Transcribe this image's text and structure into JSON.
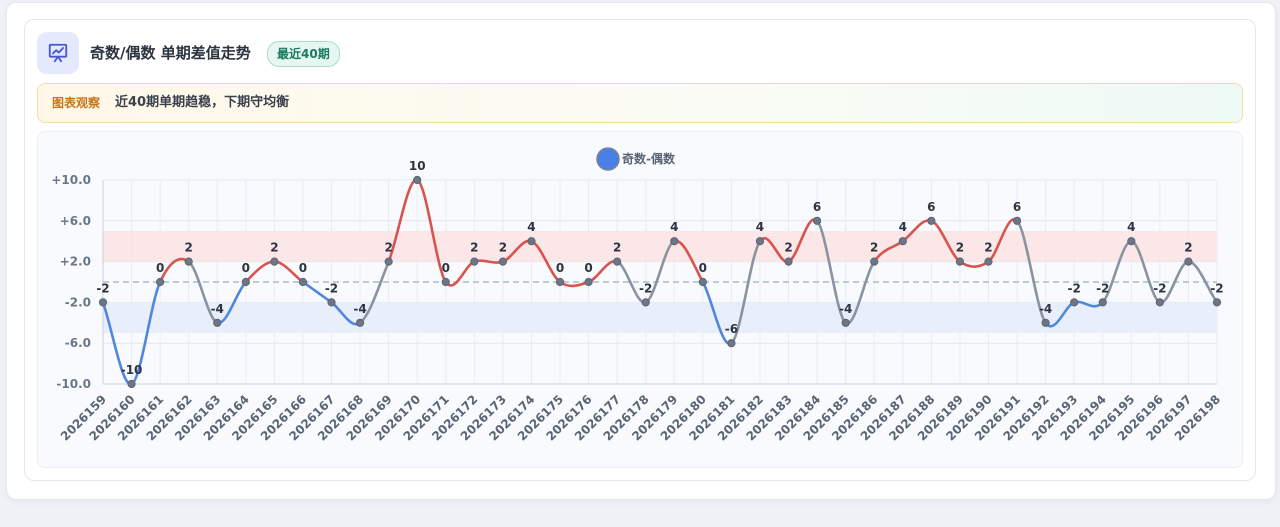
{
  "header": {
    "title": "奇数/偶数 单期差值走势",
    "badge": "最近40期"
  },
  "observation": {
    "label": "图表观察",
    "text": "近40期单期趋稳，下期守均衡"
  },
  "colors": {
    "positive": "#d9534f",
    "negative": "#4f86e0",
    "neutral": "#8a93a1",
    "legend_dot": "#4a7fe8",
    "band_positive": "#fbe3e6",
    "band_negative": "#e6edfb"
  },
  "chart_data": {
    "type": "line",
    "title": "",
    "xlabel": "",
    "ylabel": "",
    "legend": [
      "奇数-偶数"
    ],
    "legend_position": "top-center",
    "grid": true,
    "ylim": [
      -10,
      10
    ],
    "y_ticks": [
      "+10.0",
      "+6.0",
      "+2.0",
      "-2.0",
      "-6.0",
      "-10.0"
    ],
    "y_tick_values": [
      10,
      6,
      2,
      -2,
      -6,
      -10
    ],
    "reference_line": 0,
    "bands": [
      {
        "from": 2,
        "to": 5,
        "kind": "positive"
      },
      {
        "from": -2,
        "to": -5,
        "kind": "negative"
      }
    ],
    "categories": [
      "2026159",
      "2026160",
      "2026161",
      "2026162",
      "2026163",
      "2026164",
      "2026165",
      "2026166",
      "2026167",
      "2026168",
      "2026169",
      "2026170",
      "2026171",
      "2026172",
      "2026173",
      "2026174",
      "2026175",
      "2026176",
      "2026177",
      "2026178",
      "2026179",
      "2026180",
      "2026181",
      "2026182",
      "2026183",
      "2026184",
      "2026185",
      "2026186",
      "2026187",
      "2026188",
      "2026189",
      "2026190",
      "2026191",
      "2026192",
      "2026193",
      "2026194",
      "2026195",
      "2026196",
      "2026197",
      "2026198"
    ],
    "series": [
      {
        "name": "奇数-偶数",
        "values": [
          -2,
          -10,
          0,
          2,
          -4,
          0,
          2,
          0,
          -2,
          -4,
          2,
          10,
          0,
          2,
          2,
          4,
          0,
          0,
          2,
          -2,
          4,
          0,
          -6,
          4,
          2,
          6,
          -4,
          2,
          4,
          6,
          2,
          2,
          6,
          -4,
          -2,
          -2,
          4,
          -2,
          2,
          -2
        ],
        "labels": [
          "-2",
          "-10",
          "0",
          "2",
          "-4",
          "0",
          "2",
          "0",
          "-2",
          "-4",
          "2",
          "10",
          "0",
          "2",
          "2",
          "4",
          "0",
          "0",
          "2",
          "-2",
          "4",
          "0",
          "-6",
          "4",
          "2",
          "6",
          "-4",
          "2",
          "4",
          "6",
          "2",
          "2",
          "6",
          "-4",
          "-2",
          "-2",
          "4",
          "-2",
          "2",
          "-2"
        ]
      }
    ]
  }
}
